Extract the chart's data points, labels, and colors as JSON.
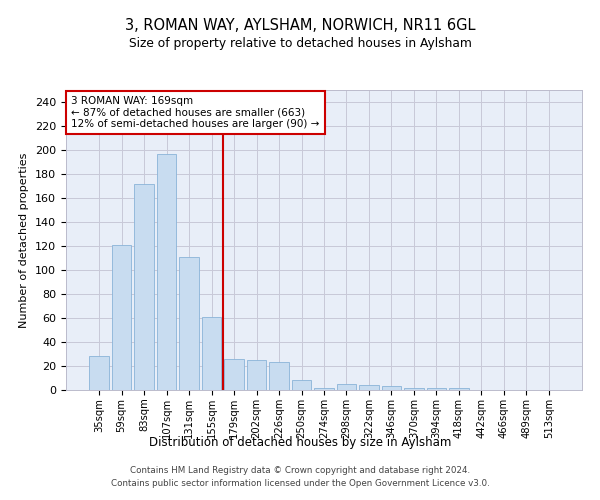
{
  "title": "3, ROMAN WAY, AYLSHAM, NORWICH, NR11 6GL",
  "subtitle": "Size of property relative to detached houses in Aylsham",
  "xlabel": "Distribution of detached houses by size in Aylsham",
  "ylabel": "Number of detached properties",
  "categories": [
    "35sqm",
    "59sqm",
    "83sqm",
    "107sqm",
    "131sqm",
    "155sqm",
    "179sqm",
    "202sqm",
    "226sqm",
    "250sqm",
    "274sqm",
    "298sqm",
    "322sqm",
    "346sqm",
    "370sqm",
    "394sqm",
    "418sqm",
    "442sqm",
    "466sqm",
    "489sqm",
    "513sqm"
  ],
  "values": [
    28,
    121,
    172,
    197,
    111,
    61,
    26,
    25,
    23,
    8,
    2,
    5,
    4,
    3,
    2,
    2,
    2,
    0,
    0,
    0,
    0
  ],
  "bar_color": "#c8dcf0",
  "bar_edge_color": "#8ab4d8",
  "vline_color": "#cc0000",
  "annotation_text": "3 ROMAN WAY: 169sqm\n← 87% of detached houses are smaller (663)\n12% of semi-detached houses are larger (90) →",
  "annotation_box_color": "#ffffff",
  "annotation_box_edge_color": "#cc0000",
  "ylim": [
    0,
    250
  ],
  "yticks": [
    0,
    20,
    40,
    60,
    80,
    100,
    120,
    140,
    160,
    180,
    200,
    220,
    240
  ],
  "background_color": "#ffffff",
  "plot_bg_color": "#e8eef8",
  "grid_color": "#c8c8d8",
  "footer": "Contains HM Land Registry data © Crown copyright and database right 2024.\nContains public sector information licensed under the Open Government Licence v3.0."
}
